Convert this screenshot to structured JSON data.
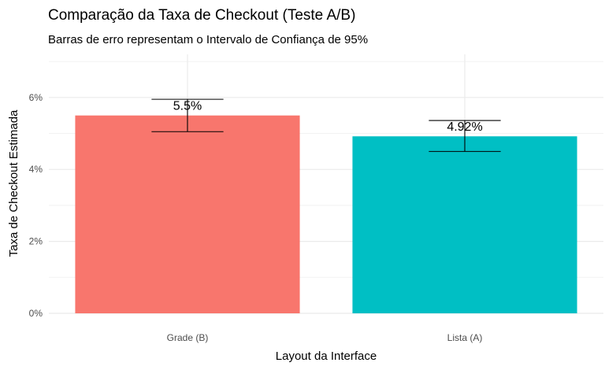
{
  "chart_data": {
    "type": "bar",
    "title": "Comparação da Taxa de Checkout (Teste A/B)",
    "subtitle": "Barras de erro representam o Intervalo de Confiança de 95%",
    "xlabel": "Layout da Interface",
    "ylabel": "Taxa de Checkout Estimada",
    "categories": [
      "Grade (B)",
      "Lista (A)"
    ],
    "values": [
      5.5,
      4.92
    ],
    "data_labels": [
      "5.5%",
      "4.92%"
    ],
    "error_bars": [
      {
        "low": 5.05,
        "high": 5.95
      },
      {
        "low": 4.5,
        "high": 5.36
      }
    ],
    "colors": [
      "#F8766D",
      "#00BFC4"
    ],
    "ylim": [
      0,
      7.2
    ],
    "y_ticks": [
      0,
      2,
      4,
      6
    ],
    "y_tick_labels": [
      "0%",
      "2%",
      "4%",
      "6%"
    ],
    "grid": true,
    "legend": "none"
  }
}
